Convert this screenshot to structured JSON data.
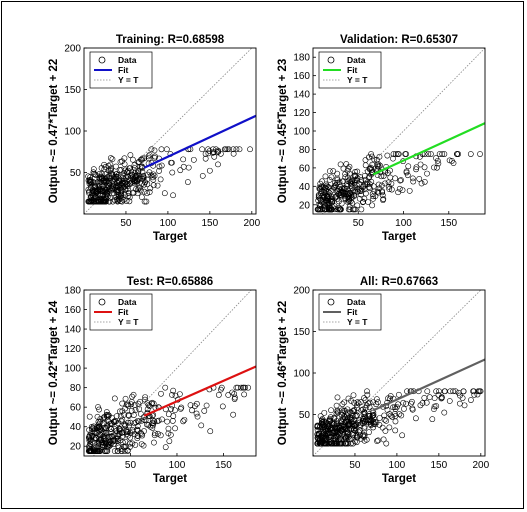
{
  "chart_data": [
    {
      "type": "scatter",
      "title": "Training: R=0.68598",
      "xlabel": "Target",
      "ylabel": "Output ~= 0.47*Target + 22",
      "xlim": [
        0,
        205
      ],
      "ylim": [
        0,
        200
      ],
      "xticks": [
        50,
        100,
        150,
        200
      ],
      "yticks": [
        50,
        100,
        150,
        200
      ],
      "fit": {
        "slope": 0.47,
        "intercept": 22,
        "color": "#1010c8"
      },
      "cloud": {
        "xmax": 100,
        "xmin": 5,
        "ymin": 15,
        "ymax": 78,
        "tail_xmax": 200,
        "count": 420
      },
      "legend": {
        "position": "top-left",
        "entries": [
          "Data",
          "Fit",
          "Y = T"
        ]
      }
    },
    {
      "type": "scatter",
      "title": "Validation: R=0.65307",
      "xlabel": "Target",
      "ylabel": "Output ~= 0.45*Target + 23",
      "xlim": [
        0,
        190
      ],
      "ylim": [
        10,
        190
      ],
      "xticks": [
        50,
        100,
        150
      ],
      "yticks": [
        20,
        40,
        60,
        80,
        100,
        120,
        140,
        160,
        180
      ],
      "fit": {
        "slope": 0.45,
        "intercept": 23,
        "color": "#22dd22"
      },
      "cloud": {
        "xmax": 100,
        "xmin": 5,
        "ymin": 15,
        "ymax": 75,
        "tail_xmax": 185,
        "count": 360
      },
      "legend": {
        "position": "top-left",
        "entries": [
          "Data",
          "Fit",
          "Y = T"
        ]
      }
    },
    {
      "type": "scatter",
      "title": "Test: R=0.65886",
      "xlabel": "Target",
      "ylabel": "Output ~= 0.42*Target + 24",
      "xlim": [
        0,
        185
      ],
      "ylim": [
        10,
        180
      ],
      "xticks": [
        50,
        100,
        150
      ],
      "yticks": [
        20,
        40,
        60,
        80,
        100,
        120,
        140,
        160,
        180
      ],
      "fit": {
        "slope": 0.42,
        "intercept": 24,
        "color": "#dd1111"
      },
      "cloud": {
        "xmax": 100,
        "xmin": 5,
        "ymin": 15,
        "ymax": 80,
        "tail_xmax": 180,
        "count": 360
      },
      "legend": {
        "position": "top-left",
        "entries": [
          "Data",
          "Fit",
          "Y = T"
        ]
      }
    },
    {
      "type": "scatter",
      "title": "All: R=0.67663",
      "xlabel": "Target",
      "ylabel": "Output ~= 0.46*Target + 22",
      "xlim": [
        0,
        205
      ],
      "ylim": [
        0,
        200
      ],
      "xticks": [
        50,
        100,
        150,
        200
      ],
      "yticks": [
        50,
        100,
        150,
        200
      ],
      "fit": {
        "slope": 0.46,
        "intercept": 22,
        "color": "#606060"
      },
      "cloud": {
        "xmax": 100,
        "xmin": 5,
        "ymin": 15,
        "ymax": 78,
        "tail_xmax": 200,
        "count": 480
      },
      "legend": {
        "position": "top-left",
        "entries": [
          "Data",
          "Fit",
          "Y = T"
        ]
      }
    }
  ]
}
